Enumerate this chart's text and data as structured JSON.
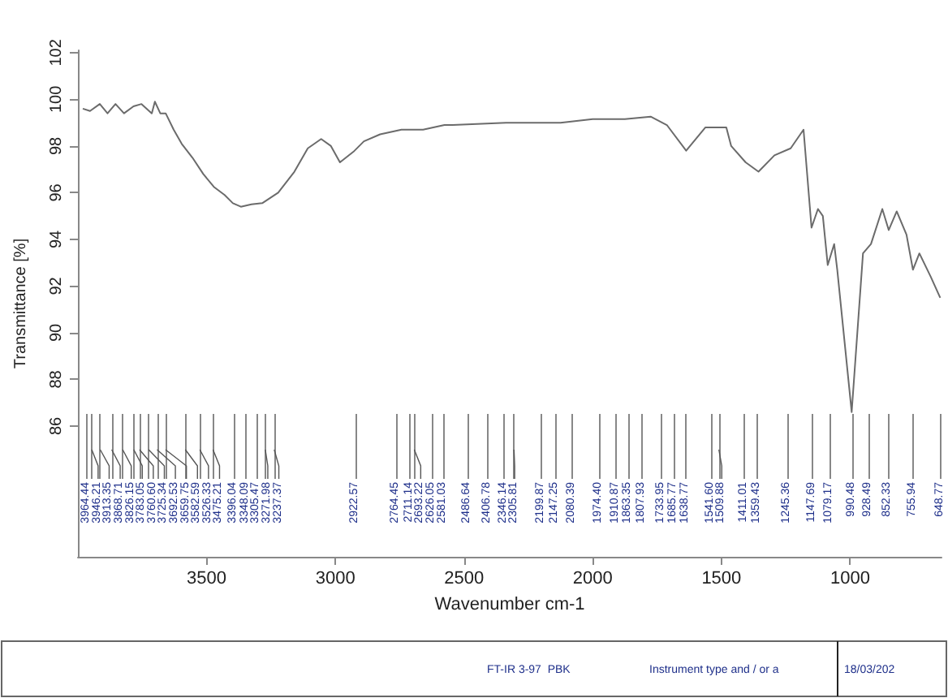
{
  "chart_data": {
    "type": "line",
    "xlabel": "Wavenumber cm-1",
    "ylabel": "Transmittance [%]",
    "xlim": [
      4000,
      645
    ],
    "xticks": [
      3500,
      3000,
      2500,
      2000,
      1500,
      1000
    ],
    "ylim": [
      80.4,
      102.1
    ],
    "yticks": [
      86,
      88,
      90,
      92,
      94,
      96,
      98,
      100,
      102
    ],
    "marker": "none",
    "line_style": "solid",
    "series": [
      {
        "color": "#6b6b6b",
        "x": [
          3981,
          3953,
          3915,
          3885,
          3854,
          3821,
          3784,
          3753,
          3713,
          3701,
          3680,
          3659,
          3628,
          3597,
          3555,
          3513,
          3472,
          3430,
          3398,
          3367,
          3326,
          3284,
          3222,
          3159,
          3107,
          3055,
          3017,
          2982,
          2930,
          2889,
          2826,
          2743,
          2659,
          2576,
          2544,
          2337,
          2125,
          2000,
          1875,
          1775,
          1712,
          1637,
          1562,
          1481,
          1462,
          1406,
          1356,
          1294,
          1231,
          1181,
          1150,
          1125,
          1106,
          1087,
          1062,
          1050,
          994,
          950,
          919,
          875,
          850,
          819,
          781,
          756,
          731,
          687,
          650
        ],
        "values": [
          99.6,
          99.5,
          99.8,
          99.4,
          99.8,
          99.4,
          99.7,
          99.8,
          99.4,
          99.9,
          99.4,
          99.4,
          98.7,
          98.1,
          97.5,
          96.8,
          96.25,
          95.9,
          95.55,
          95.4,
          95.5,
          95.55,
          96.0,
          96.9,
          97.9,
          98.3,
          98.0,
          97.3,
          97.75,
          98.2,
          98.5,
          98.7,
          98.7,
          98.9,
          98.9,
          99.0,
          99.0,
          99.15,
          99.15,
          99.26,
          98.9,
          97.8,
          98.8,
          98.8,
          98.0,
          97.3,
          96.9,
          97.6,
          97.9,
          98.7,
          94.5,
          95.3,
          95.0,
          92.9,
          93.8,
          92.7,
          86.6,
          93.4,
          93.8,
          95.3,
          94.4,
          95.2,
          94.2,
          92.7,
          93.4,
          92.4,
          91.5
        ]
      }
    ],
    "ref_lines": [
      {
        "axis": "x",
        "value": 3964.44,
        "label": "3964.44"
      },
      {
        "axis": "x",
        "value": 3946.21,
        "label": "3946.21"
      },
      {
        "axis": "x",
        "value": 3913.35,
        "label": "3913.35"
      },
      {
        "axis": "x",
        "value": 3868.71,
        "label": "3868.71"
      },
      {
        "axis": "x",
        "value": 3826.15,
        "label": "3826.15"
      },
      {
        "axis": "x",
        "value": 3783.05,
        "label": "3783.05"
      },
      {
        "axis": "x",
        "value": 3760.6,
        "label": "3760.60"
      },
      {
        "axis": "x",
        "value": 3725.34,
        "label": "3725.34"
      },
      {
        "axis": "x",
        "value": 3692.53,
        "label": "3692.53"
      },
      {
        "axis": "x",
        "value": 3659.75,
        "label": "3659.75"
      },
      {
        "axis": "x",
        "value": 3582.59,
        "label": "3582.59"
      },
      {
        "axis": "x",
        "value": 3526.33,
        "label": "3526.33"
      },
      {
        "axis": "x",
        "value": 3475.21,
        "label": "3475.21"
      },
      {
        "axis": "x",
        "value": 3396.04,
        "label": "3396.04"
      },
      {
        "axis": "x",
        "value": 3348.09,
        "label": "3348.09"
      },
      {
        "axis": "x",
        "value": 3305.47,
        "label": "3305.47"
      },
      {
        "axis": "x",
        "value": 3271.98,
        "label": "3271.98"
      },
      {
        "axis": "x",
        "value": 3237.37,
        "label": "3237.37"
      },
      {
        "axis": "x",
        "value": 2922.57,
        "label": "2922.57"
      },
      {
        "axis": "x",
        "value": 2764.45,
        "label": "2764.45"
      },
      {
        "axis": "x",
        "value": 2711.14,
        "label": "2711.14"
      },
      {
        "axis": "x",
        "value": 2693.22,
        "label": "2693.22"
      },
      {
        "axis": "x",
        "value": 2626.05,
        "label": "2626.05"
      },
      {
        "axis": "x",
        "value": 2581.03,
        "label": "2581.03"
      },
      {
        "axis": "x",
        "value": 2486.64,
        "label": "2486.64"
      },
      {
        "axis": "x",
        "value": 2406.78,
        "label": "2406.78"
      },
      {
        "axis": "x",
        "value": 2346.14,
        "label": "2346.14"
      },
      {
        "axis": "x",
        "value": 2305.81,
        "label": "2305.81"
      },
      {
        "axis": "x",
        "value": 2199.87,
        "label": "2199.87"
      },
      {
        "axis": "x",
        "value": 2147.25,
        "label": "2147.25"
      },
      {
        "axis": "x",
        "value": 2080.39,
        "label": "2080.39"
      },
      {
        "axis": "x",
        "value": 1974.4,
        "label": "1974.40"
      },
      {
        "axis": "x",
        "value": 1910.87,
        "label": "1910.87"
      },
      {
        "axis": "x",
        "value": 1863.35,
        "label": "1863.35"
      },
      {
        "axis": "x",
        "value": 1807.93,
        "label": "1807.93"
      },
      {
        "axis": "x",
        "value": 1733.95,
        "label": "1733.95"
      },
      {
        "axis": "x",
        "value": 1685.77,
        "label": "1685.77"
      },
      {
        "axis": "x",
        "value": 1638.77,
        "label": "1638.77"
      },
      {
        "axis": "x",
        "value": 1541.6,
        "label": "1541.60"
      },
      {
        "axis": "x",
        "value": 1509.88,
        "label": "1509.88"
      },
      {
        "axis": "x",
        "value": 1411.01,
        "label": "1411.01"
      },
      {
        "axis": "x",
        "value": 1359.43,
        "label": "1359.43"
      },
      {
        "axis": "x",
        "value": 1245.36,
        "label": "1245.36"
      },
      {
        "axis": "x",
        "value": 1147.69,
        "label": "1147.69"
      },
      {
        "axis": "x",
        "value": 1079.17,
        "label": "1079.17"
      },
      {
        "axis": "x",
        "value": 990.48,
        "label": "990.48"
      },
      {
        "axis": "x",
        "value": 928.49,
        "label": "928.49"
      },
      {
        "axis": "x",
        "value": 852.33,
        "label": "852.33"
      },
      {
        "axis": "x",
        "value": 755.94,
        "label": "755.94"
      },
      {
        "axis": "x",
        "value": 648.77,
        "label": "648.77"
      }
    ],
    "annotations": [
      "FT-IR 3-97  PBK",
      "Instrument type and / or a",
      "18/03/202"
    ]
  }
}
